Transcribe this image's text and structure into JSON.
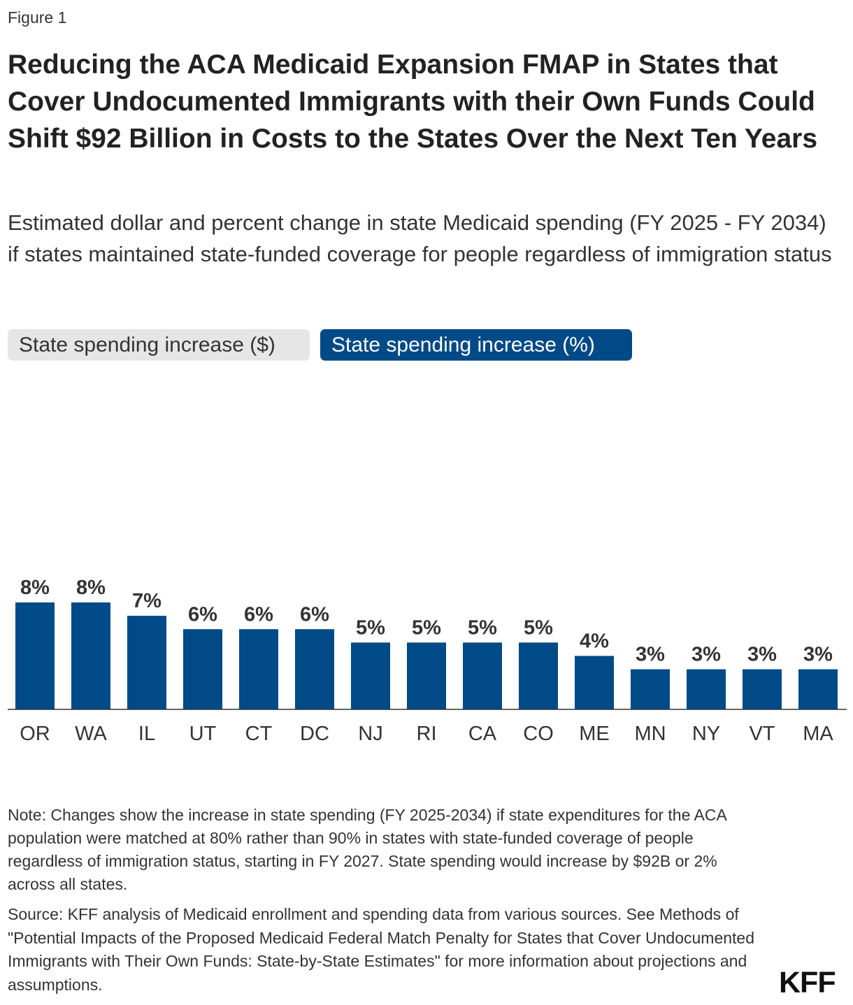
{
  "figure_label": "Figure 1",
  "title": "Reducing the ACA Medicaid Expansion FMAP in States that Cover Undocumented Immigrants with their Own Funds Could Shift $92 Billion in Costs to the States Over the Next Ten Years",
  "subtitle": "Estimated dollar and percent change in state Medicaid spending (FY 2025 - FY 2034) if states maintained state-funded coverage for people regardless of immigration status",
  "toggles": {
    "dollar_label": "State spending increase ($)",
    "percent_label": "State spending increase (%)",
    "selected": "percent"
  },
  "colors": {
    "bar": "#004a88",
    "active_toggle": "#004a88",
    "axis": "#333333"
  },
  "chart_data": {
    "type": "bar",
    "categories": [
      "OR",
      "WA",
      "IL",
      "UT",
      "CT",
      "DC",
      "NJ",
      "RI",
      "CA",
      "CO",
      "ME",
      "MN",
      "NY",
      "VT",
      "MA"
    ],
    "values": [
      8,
      8,
      7,
      6,
      6,
      6,
      5,
      5,
      5,
      5,
      4,
      3,
      3,
      3,
      3
    ],
    "value_labels": [
      "8%",
      "8%",
      "7%",
      "6%",
      "6%",
      "6%",
      "5%",
      "5%",
      "5%",
      "5%",
      "4%",
      "3%",
      "3%",
      "3%",
      "3%"
    ],
    "unit": "%",
    "ylim": [
      0,
      8
    ],
    "grid": false
  },
  "note": "Note: Changes show the increase in state spending (FY 2025-2034) if state expenditures for the ACA population were matched at 80% rather than 90% in states with state-funded coverage of people regardless of immigration status, starting in FY 2027. State spending would increase by $92B or 2% across all states.",
  "source": "Source: KFF analysis of Medicaid enrollment and spending data from various sources. See Methods of \"Potential Impacts of the Proposed Medicaid Federal Match Penalty for States that Cover Undocumented Immigrants with Their Own Funds: State-by-State Estimates\" for more information about projections and assumptions.",
  "logo_text": "KFF"
}
